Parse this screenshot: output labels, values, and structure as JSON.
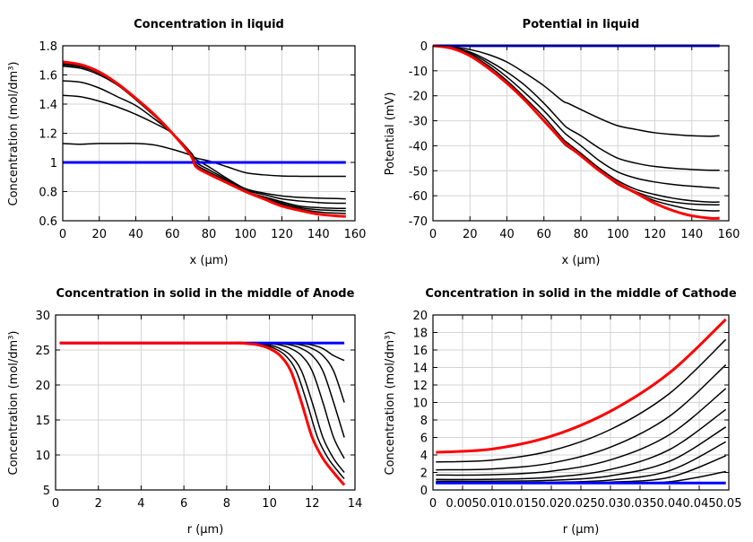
{
  "chart_data": [
    {
      "type": "line",
      "title": "Concentration in liquid",
      "xlabel": "x (µm)",
      "ylabel": "Concentration (mol/dm³)",
      "xlim": [
        0,
        160
      ],
      "ylim": [
        0.6,
        1.8
      ],
      "xticks": [
        0,
        20,
        40,
        60,
        80,
        100,
        120,
        140,
        160
      ],
      "xtick_labels": [
        "0",
        "20",
        "40",
        "60",
        "80",
        "100",
        "120",
        "140",
        "160"
      ],
      "yticks": [
        0.6,
        0.8,
        1.0,
        1.2,
        1.4,
        1.6,
        1.8
      ],
      "ytick_labels": [
        "0.6",
        "0.8",
        "1",
        "1.2",
        "1.4",
        "1.6",
        "1.8"
      ],
      "grid": true,
      "x": [
        0,
        10,
        20,
        30,
        40,
        50,
        60,
        70,
        73,
        80,
        90,
        100,
        110,
        120,
        130,
        140,
        150,
        155
      ],
      "series": [
        {
          "color": "#000000",
          "values": [
            1.13,
            1.125,
            1.13,
            1.13,
            1.13,
            1.12,
            1.09,
            1.05,
            1.03,
            1.01,
            0.97,
            0.93,
            0.915,
            0.907,
            0.905,
            0.905,
            0.905,
            0.905
          ]
        },
        {
          "color": "#000000",
          "values": [
            1.46,
            1.45,
            1.42,
            1.38,
            1.33,
            1.27,
            1.2,
            1.07,
            1.02,
            0.97,
            0.89,
            0.82,
            0.79,
            0.77,
            0.76,
            0.755,
            0.752,
            0.75
          ]
        },
        {
          "color": "#000000",
          "values": [
            1.56,
            1.55,
            1.51,
            1.45,
            1.39,
            1.3,
            1.2,
            1.06,
            1.0,
            0.95,
            0.88,
            0.81,
            0.78,
            0.75,
            0.735,
            0.725,
            0.72,
            0.72
          ]
        },
        {
          "color": "#000000",
          "values": [
            1.66,
            1.645,
            1.6,
            1.53,
            1.43,
            1.32,
            1.2,
            1.06,
            0.985,
            0.935,
            0.87,
            0.8,
            0.765,
            0.73,
            0.7,
            0.69,
            0.685,
            0.685
          ]
        },
        {
          "color": "#000000",
          "values": [
            1.67,
            1.655,
            1.61,
            1.535,
            1.435,
            1.325,
            1.2,
            1.055,
            0.98,
            0.93,
            0.865,
            0.8,
            0.76,
            0.72,
            0.69,
            0.675,
            0.67,
            0.668
          ]
        },
        {
          "color": "#000000",
          "values": [
            1.68,
            1.66,
            1.615,
            1.54,
            1.44,
            1.33,
            1.2,
            1.05,
            0.975,
            0.925,
            0.86,
            0.8,
            0.755,
            0.71,
            0.68,
            0.66,
            0.652,
            0.65
          ]
        },
        {
          "color": "#0000ff",
          "values": [
            1,
            1,
            1,
            1,
            1,
            1,
            1,
            1,
            1,
            1,
            1,
            1,
            1,
            1,
            1,
            1,
            1,
            1
          ]
        },
        {
          "color": "#ff0000",
          "values": [
            1.69,
            1.67,
            1.62,
            1.54,
            1.44,
            1.33,
            1.2,
            1.05,
            0.97,
            0.92,
            0.86,
            0.8,
            0.75,
            0.7,
            0.67,
            0.645,
            0.633,
            0.63
          ]
        }
      ]
    },
    {
      "type": "line",
      "title": "Potential in liquid",
      "xlabel": "x (µm)",
      "ylabel": "Potential (mV)",
      "xlim": [
        0,
        160
      ],
      "ylim": [
        -70,
        0
      ],
      "xticks": [
        0,
        20,
        40,
        60,
        80,
        100,
        120,
        140,
        160
      ],
      "xtick_labels": [
        "0",
        "20",
        "40",
        "60",
        "80",
        "100",
        "120",
        "140",
        "160"
      ],
      "yticks": [
        -70,
        -60,
        -50,
        -40,
        -30,
        -20,
        -10,
        0
      ],
      "ytick_labels": [
        "-70",
        "-60",
        "-50",
        "-40",
        "-30",
        "-20",
        "-10",
        "0"
      ],
      "grid": true,
      "x": [
        0,
        10,
        20,
        30,
        40,
        50,
        60,
        70,
        73,
        80,
        90,
        100,
        110,
        120,
        130,
        140,
        150,
        155
      ],
      "series": [
        {
          "color": "#000000",
          "values": [
            0,
            -0.5,
            -1.5,
            -3.5,
            -6.5,
            -11,
            -16,
            -22,
            -23,
            -25.5,
            -29,
            -32,
            -33.5,
            -34.8,
            -35.5,
            -36,
            -36.2,
            -36
          ]
        },
        {
          "color": "#000000",
          "values": [
            0,
            -0.7,
            -2.5,
            -6,
            -10.5,
            -16,
            -23,
            -31,
            -33,
            -36,
            -41,
            -45,
            -47,
            -48.3,
            -49,
            -49.5,
            -49.8,
            -49.8
          ]
        },
        {
          "color": "#000000",
          "values": [
            0,
            -0.8,
            -3,
            -7,
            -12.5,
            -19,
            -26,
            -34,
            -36,
            -40,
            -46,
            -50.5,
            -53,
            -54.5,
            -55.5,
            -56.2,
            -56.7,
            -57
          ]
        },
        {
          "color": "#000000",
          "values": [
            0,
            -0.9,
            -3.5,
            -8,
            -14,
            -21,
            -28.5,
            -37,
            -39,
            -43,
            -49,
            -54,
            -57.5,
            -59.5,
            -61,
            -62,
            -62.5,
            -62.5
          ]
        },
        {
          "color": "#000000",
          "values": [
            0,
            -1,
            -4,
            -9,
            -15,
            -22,
            -30,
            -38.5,
            -40.5,
            -44,
            -50,
            -55,
            -58.5,
            -61,
            -62.5,
            -63.3,
            -63.6,
            -63.6
          ]
        },
        {
          "color": "#000000",
          "values": [
            0,
            -1,
            -4,
            -9,
            -15,
            -22,
            -30,
            -38.5,
            -40.5,
            -44,
            -50,
            -55.5,
            -59,
            -62,
            -64,
            -65.5,
            -66,
            -66
          ]
        },
        {
          "color": "#0000ff",
          "values": [
            0,
            0,
            0,
            0,
            0,
            0,
            0,
            0,
            0,
            0,
            0,
            0,
            0,
            0,
            0,
            0,
            0,
            0
          ]
        },
        {
          "color": "#ff0000",
          "values": [
            0,
            -1,
            -4,
            -9,
            -15,
            -22,
            -30,
            -38,
            -40,
            -44,
            -50,
            -55,
            -59,
            -63,
            -66,
            -68,
            -69,
            -69
          ]
        }
      ]
    },
    {
      "type": "line",
      "title": "Concentration in solid in the middle of Anode",
      "xlabel": "r (µm)",
      "ylabel": "Concentration (mol/dm³)",
      "xlim": [
        0,
        14
      ],
      "ylim": [
        5,
        30
      ],
      "xticks": [
        0,
        2,
        4,
        6,
        8,
        10,
        12,
        14
      ],
      "xtick_labels": [
        "0",
        "2",
        "4",
        "6",
        "8",
        "10",
        "12",
        "14"
      ],
      "yticks": [
        5,
        10,
        15,
        20,
        25,
        30
      ],
      "ytick_labels": [
        "5",
        "10",
        "15",
        "20",
        "25",
        "30"
      ],
      "grid": true,
      "series": [
        {
          "color": "#000000",
          "points": [
            [
              0.2,
              26
            ],
            [
              11,
              26
            ],
            [
              11.5,
              25.9
            ],
            [
              12,
              25.7
            ],
            [
              12.5,
              25.2
            ],
            [
              13,
              24.2
            ],
            [
              13.5,
              23.5
            ]
          ]
        },
        {
          "color": "#000000",
          "points": [
            [
              0.2,
              26
            ],
            [
              10.5,
              26
            ],
            [
              11,
              25.9
            ],
            [
              11.5,
              25.7
            ],
            [
              12,
              25.2
            ],
            [
              12.5,
              24.2
            ],
            [
              13,
              22
            ],
            [
              13.5,
              17.5
            ]
          ]
        },
        {
          "color": "#000000",
          "points": [
            [
              0.2,
              26
            ],
            [
              10,
              26
            ],
            [
              10.5,
              25.9
            ],
            [
              11,
              25.7
            ],
            [
              11.5,
              25.2
            ],
            [
              12,
              24.2
            ],
            [
              12.5,
              22
            ],
            [
              13,
              17.5
            ],
            [
              13.5,
              12.5
            ]
          ]
        },
        {
          "color": "#000000",
          "points": [
            [
              0.2,
              26
            ],
            [
              9.5,
              26
            ],
            [
              10,
              25.9
            ],
            [
              10.5,
              25.7
            ],
            [
              11,
              25.2
            ],
            [
              11.5,
              24.2
            ],
            [
              12,
              22
            ],
            [
              12.5,
              17.5
            ],
            [
              13,
              12.5
            ],
            [
              13.5,
              9.5
            ]
          ]
        },
        {
          "color": "#000000",
          "points": [
            [
              0.2,
              26
            ],
            [
              9,
              26
            ],
            [
              9.5,
              25.9
            ],
            [
              10,
              25.7
            ],
            [
              10.5,
              25.2
            ],
            [
              11,
              24.2
            ],
            [
              11.5,
              22
            ],
            [
              12,
              17.5
            ],
            [
              12.5,
              12.5
            ],
            [
              13,
              9.5
            ],
            [
              13.5,
              7.5
            ]
          ]
        },
        {
          "color": "#000000",
          "points": [
            [
              0.2,
              26
            ],
            [
              8.75,
              26
            ],
            [
              9.25,
              25.9
            ],
            [
              9.75,
              25.7
            ],
            [
              10.25,
              25.2
            ],
            [
              10.75,
              24.2
            ],
            [
              11.25,
              22
            ],
            [
              11.75,
              17.5
            ],
            [
              12.25,
              12.5
            ],
            [
              12.75,
              9.5
            ],
            [
              13.25,
              7.5
            ],
            [
              13.5,
              6.6
            ]
          ]
        },
        {
          "color": "#0000ff",
          "points": [
            [
              0.2,
              26
            ],
            [
              13.5,
              26
            ]
          ]
        },
        {
          "color": "#ff0000",
          "points": [
            [
              0.2,
              26
            ],
            [
              8,
              26
            ],
            [
              8.5,
              26
            ],
            [
              9,
              25.9
            ],
            [
              9.5,
              25.7
            ],
            [
              10,
              25.2
            ],
            [
              10.5,
              24.2
            ],
            [
              11,
              22
            ],
            [
              11.5,
              17.5
            ],
            [
              12,
              12.5
            ],
            [
              12.5,
              9.5
            ],
            [
              13,
              7.5
            ],
            [
              13.5,
              5.7
            ]
          ]
        }
      ]
    },
    {
      "type": "line",
      "title": "Concentration in solid in the middle of Cathode",
      "xlabel": "r (µm)",
      "ylabel": "Concentration (mol/dm³)",
      "xlim": [
        0,
        0.05
      ],
      "ylim": [
        0,
        20
      ],
      "xticks": [
        0,
        0.005,
        0.01,
        0.015,
        0.02,
        0.025,
        0.03,
        0.035,
        0.04,
        0.045,
        0.05
      ],
      "xtick_labels": [
        "0",
        "0.005",
        "0.01",
        "0.015",
        "0.02",
        "0.025",
        "0.03",
        "0.035",
        "0.04",
        "0.045",
        "0.05"
      ],
      "yticks": [
        0,
        2,
        4,
        6,
        8,
        10,
        12,
        14,
        16,
        18,
        20
      ],
      "ytick_labels": [
        "0",
        "2",
        "4",
        "6",
        "8",
        "10",
        "12",
        "14",
        "16",
        "18",
        "20"
      ],
      "grid": true,
      "x": [
        0.0005,
        0.01,
        0.02,
        0.03,
        0.04,
        0.0495
      ],
      "series": [
        {
          "color": "#000000",
          "values": [
            3.2,
            3.41,
            4.49,
            6.91,
            11.04,
            17.2
          ]
        },
        {
          "color": "#000000",
          "values": [
            2.3,
            2.4,
            3.07,
            4.89,
            8.44,
            14.3
          ]
        },
        {
          "color": "#000000",
          "values": [
            1.7,
            1.74,
            2.14,
            3.44,
            6.33,
            11.6
          ]
        },
        {
          "color": "#000000",
          "values": [
            1.2,
            1.22,
            1.45,
            2.34,
            4.62,
            9.2
          ]
        },
        {
          "color": "#000000",
          "values": [
            1.0,
            1.0,
            1.1,
            1.62,
            3.27,
            7.2
          ]
        },
        {
          "color": "#000000",
          "values": [
            0.85,
            0.85,
            0.88,
            1.13,
            2.21,
            5.5
          ]
        },
        {
          "color": "#000000",
          "values": [
            0.8,
            0.8,
            0.8,
            0.89,
            1.45,
            3.9
          ]
        },
        {
          "color": "#000000",
          "values": [
            0.8,
            0.8,
            0.8,
            0.81,
            0.94,
            2.1
          ]
        },
        {
          "color": "#0000ff",
          "values": [
            0.8,
            0.8,
            0.8,
            0.8,
            0.8,
            0.8
          ]
        },
        {
          "color": "#ff0000",
          "values": [
            4.3,
            4.68,
            6.15,
            9.0,
            13.4,
            19.5
          ]
        }
      ]
    }
  ]
}
